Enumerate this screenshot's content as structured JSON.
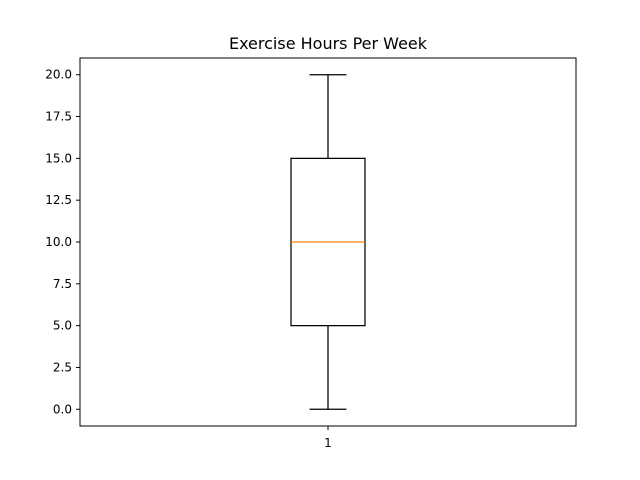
{
  "chart_data": {
    "type": "box",
    "title": "Exercise Hours Per Week",
    "xlabel": "",
    "ylabel": "",
    "ylim": [
      -1.0,
      21.0
    ],
    "categories": [
      "1"
    ],
    "yticks": [
      0.0,
      2.5,
      5.0,
      7.5,
      10.0,
      12.5,
      15.0,
      17.5,
      20.0
    ],
    "ytick_labels": [
      "0.0",
      "2.5",
      "5.0",
      "7.5",
      "10.0",
      "12.5",
      "15.0",
      "17.5",
      "20.0"
    ],
    "boxes": [
      {
        "category": "1",
        "whisker_low": 0.0,
        "q1": 5.0,
        "median": 10.0,
        "q3": 15.0,
        "whisker_high": 20.0
      }
    ],
    "colors": {
      "box": "#000000",
      "median": "#ff7f0e",
      "axes": "#000000"
    },
    "grid": false,
    "legend": "none"
  }
}
